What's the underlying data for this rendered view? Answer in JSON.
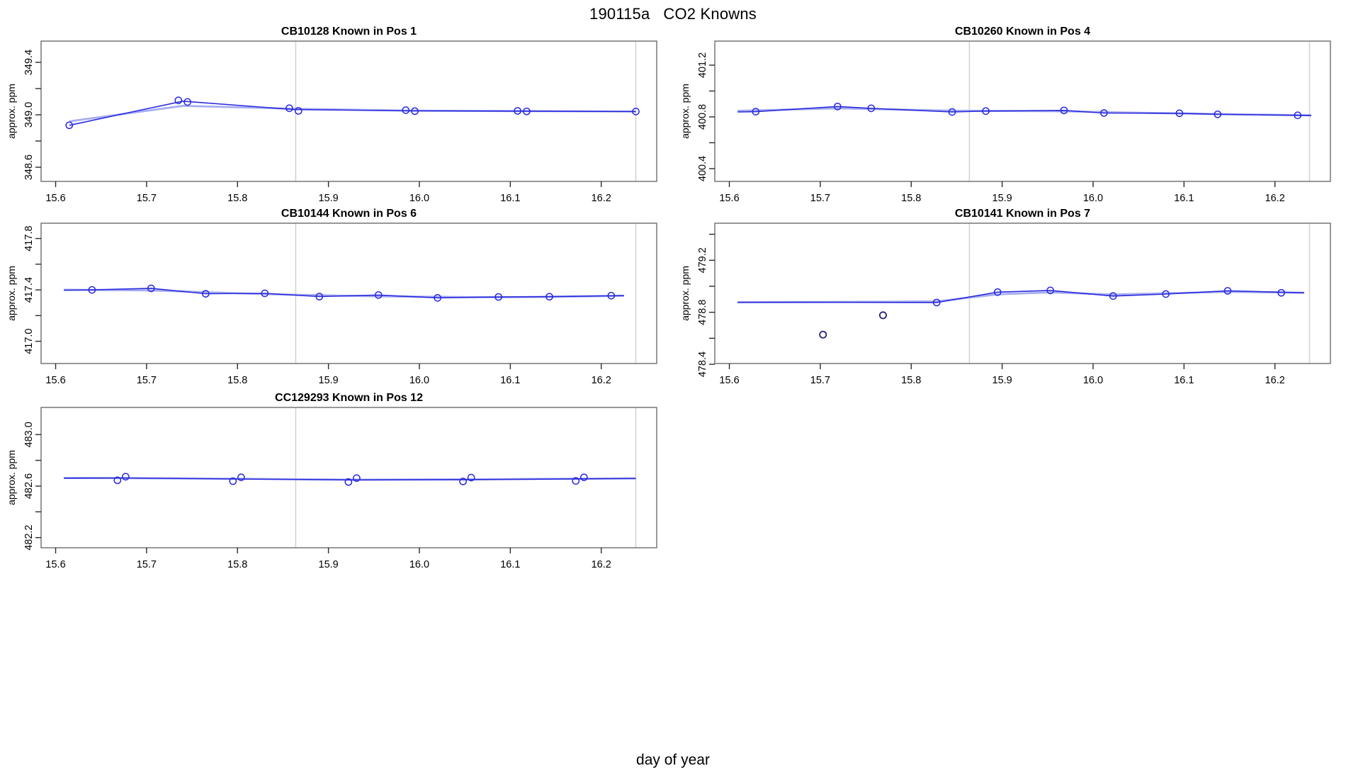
{
  "page": {
    "main_title": "190115a   CO2 Knowns",
    "x_axis_label": "day of year"
  },
  "colors": {
    "line": "#2a2ade",
    "smooth": "#a6adf0",
    "marker": "#2a2ade",
    "outlier": "#23237a",
    "vline": "#d3d3d3",
    "box": "#6b6b6b",
    "tick": "#2a2a2a",
    "text": "#000000"
  },
  "chart_data": {
    "type": "line",
    "title": "190115a   CO2 Knowns",
    "xlabel": "day of year",
    "ylabel": "approx. ppm",
    "xlim": [
      15.584,
      16.261
    ],
    "xticks": [
      {
        "v": 15.6,
        "label": "15.6"
      },
      {
        "v": 15.7,
        "label": "15.7"
      },
      {
        "v": 15.8,
        "label": "15.8"
      },
      {
        "v": 15.9,
        "label": "15.9"
      },
      {
        "v": 16.0,
        "label": "16.0"
      },
      {
        "v": 16.1,
        "label": "16.1"
      },
      {
        "v": 16.2,
        "label": "16.2"
      }
    ],
    "vlines": [
      15.864,
      16.238
    ],
    "legend": "none",
    "grid": "off",
    "panels": [
      {
        "sample": "CB10128",
        "position": "Pos 1",
        "title": "CB10128   Known in Pos 1",
        "grid": [
          0,
          0
        ],
        "ylim": [
          348.492,
          349.562
        ],
        "yticks": [
          {
            "v": 348.6,
            "label": "348.6"
          },
          {
            "v": 348.8,
            "label": ""
          },
          {
            "v": 349.0,
            "label": "349.0"
          },
          {
            "v": 349.2,
            "label": ""
          },
          {
            "v": 349.4,
            "label": "349.4"
          }
        ],
        "points": [
          [
            15.615,
            348.92
          ],
          [
            15.735,
            349.11
          ],
          [
            15.745,
            349.098
          ],
          [
            15.857,
            349.05
          ],
          [
            15.867,
            349.03
          ],
          [
            15.985,
            349.035
          ],
          [
            15.995,
            349.028
          ],
          [
            16.108,
            349.03
          ],
          [
            16.118,
            349.026
          ],
          [
            16.238,
            349.025
          ]
        ],
        "outliers": [],
        "line": [
          [
            15.615,
            348.92
          ],
          [
            15.74,
            349.104
          ],
          [
            15.862,
            349.04
          ],
          [
            15.99,
            349.03
          ],
          [
            16.113,
            349.028
          ],
          [
            16.238,
            349.025
          ]
        ],
        "smooth": [
          [
            15.615,
            348.95
          ],
          [
            15.74,
            349.068
          ],
          [
            15.862,
            349.046
          ],
          [
            15.99,
            349.032
          ],
          [
            16.113,
            349.028
          ],
          [
            16.238,
            349.025
          ]
        ]
      },
      {
        "sample": "CB10260",
        "position": "Pos 4",
        "title": "CB10260   Known in Pos 4",
        "grid": [
          0,
          1
        ],
        "ylim": [
          400.301,
          401.386
        ],
        "yticks": [
          {
            "v": 400.4,
            "label": "400.4"
          },
          {
            "v": 400.6,
            "label": ""
          },
          {
            "v": 400.8,
            "label": "400.8"
          },
          {
            "v": 401.0,
            "label": ""
          },
          {
            "v": 401.2,
            "label": "401.2"
          }
        ],
        "points": [
          [
            15.629,
            400.84
          ],
          [
            15.719,
            400.88
          ],
          [
            15.756,
            400.866
          ],
          [
            15.845,
            400.838
          ],
          [
            15.882,
            400.845
          ],
          [
            15.968,
            400.85
          ],
          [
            16.012,
            400.83
          ],
          [
            16.095,
            400.828
          ],
          [
            16.137,
            400.82
          ],
          [
            16.225,
            400.812
          ]
        ],
        "outliers": [],
        "line": [
          [
            15.609,
            400.838
          ],
          [
            15.629,
            400.84
          ],
          [
            15.719,
            400.88
          ],
          [
            15.756,
            400.866
          ],
          [
            15.845,
            400.838
          ],
          [
            15.882,
            400.845
          ],
          [
            15.968,
            400.85
          ],
          [
            16.012,
            400.83
          ],
          [
            16.095,
            400.828
          ],
          [
            16.137,
            400.82
          ],
          [
            16.24,
            400.81
          ]
        ],
        "smooth": [
          [
            15.609,
            400.847
          ],
          [
            15.719,
            400.866
          ],
          [
            15.845,
            400.848
          ],
          [
            15.968,
            400.843
          ],
          [
            16.095,
            400.826
          ],
          [
            16.24,
            400.812
          ]
        ]
      },
      {
        "sample": "CB10144",
        "position": "Pos 6",
        "title": "CB10144   Known in Pos 6",
        "grid": [
          1,
          0
        ],
        "ylim": [
          416.827,
          417.919
        ],
        "yticks": [
          {
            "v": 417.0,
            "label": "417.0"
          },
          {
            "v": 417.2,
            "label": ""
          },
          {
            "v": 417.4,
            "label": "417.4"
          },
          {
            "v": 417.6,
            "label": ""
          },
          {
            "v": 417.8,
            "label": "417.8"
          }
        ],
        "points": [
          [
            15.64,
            417.4
          ],
          [
            15.705,
            417.412
          ],
          [
            15.765,
            417.37
          ],
          [
            15.83,
            417.373
          ],
          [
            15.89,
            417.348
          ],
          [
            15.955,
            417.36
          ],
          [
            16.02,
            417.338
          ],
          [
            16.087,
            417.345
          ],
          [
            16.143,
            417.347
          ],
          [
            16.211,
            417.355
          ]
        ],
        "outliers": [],
        "line": [
          [
            15.609,
            417.397
          ],
          [
            15.64,
            417.4
          ],
          [
            15.705,
            417.412
          ],
          [
            15.765,
            417.37
          ],
          [
            15.83,
            417.373
          ],
          [
            15.89,
            417.348
          ],
          [
            15.955,
            417.36
          ],
          [
            16.02,
            417.338
          ],
          [
            16.087,
            417.345
          ],
          [
            16.143,
            417.347
          ],
          [
            16.225,
            417.356
          ]
        ],
        "smooth": [
          [
            15.609,
            417.401
          ],
          [
            15.705,
            417.396
          ],
          [
            15.83,
            417.367
          ],
          [
            15.955,
            417.35
          ],
          [
            16.087,
            417.342
          ],
          [
            16.225,
            417.353
          ]
        ]
      },
      {
        "sample": "CB10141",
        "position": "Pos 7",
        "title": "CB10141   Known in Pos 7",
        "grid": [
          1,
          1
        ],
        "ylim": [
          478.406,
          479.485
        ],
        "yticks": [
          {
            "v": 478.4,
            "label": "478.4"
          },
          {
            "v": 478.6,
            "label": ""
          },
          {
            "v": 478.8,
            "label": "478.8"
          },
          {
            "v": 479.0,
            "label": ""
          },
          {
            "v": 479.2,
            "label": "479.2"
          },
          {
            "v": 479.4,
            "label": ""
          }
        ],
        "points": [
          [
            15.828,
            478.875
          ],
          [
            15.895,
            478.955
          ],
          [
            15.953,
            478.968
          ],
          [
            16.022,
            478.925
          ],
          [
            16.08,
            478.94
          ],
          [
            16.148,
            478.965
          ],
          [
            16.207,
            478.95
          ]
        ],
        "outliers": [
          [
            15.703,
            478.628
          ],
          [
            15.769,
            478.777
          ]
        ],
        "line": [
          [
            15.609,
            478.878
          ],
          [
            15.828,
            478.875
          ],
          [
            15.895,
            478.955
          ],
          [
            15.953,
            478.968
          ],
          [
            16.022,
            478.925
          ],
          [
            16.08,
            478.94
          ],
          [
            16.148,
            478.965
          ],
          [
            16.232,
            478.95
          ]
        ],
        "smooth": [
          [
            15.609,
            478.875
          ],
          [
            15.828,
            478.884
          ],
          [
            15.895,
            478.938
          ],
          [
            15.953,
            478.953
          ],
          [
            16.022,
            478.936
          ],
          [
            16.08,
            478.946
          ],
          [
            16.148,
            478.957
          ],
          [
            16.232,
            478.95
          ]
        ]
      },
      {
        "sample": "CC129293",
        "position": "Pos 12",
        "title": "CC129293   Known in Pos 12",
        "grid": [
          2,
          0
        ],
        "ylim": [
          482.121,
          483.211
        ],
        "yticks": [
          {
            "v": 482.2,
            "label": "482.2"
          },
          {
            "v": 482.4,
            "label": ""
          },
          {
            "v": 482.6,
            "label": "482.6"
          },
          {
            "v": 482.8,
            "label": ""
          },
          {
            "v": 483.0,
            "label": "483.0"
          }
        ],
        "points": [
          [
            15.668,
            482.645
          ],
          [
            15.677,
            482.673
          ],
          [
            15.795,
            482.638
          ],
          [
            15.804,
            482.668
          ],
          [
            15.922,
            482.632
          ],
          [
            15.931,
            482.662
          ],
          [
            16.048,
            482.636
          ],
          [
            16.057,
            482.666
          ],
          [
            16.172,
            482.64
          ],
          [
            16.181,
            482.668
          ]
        ],
        "outliers": [],
        "line": [
          [
            15.609,
            482.661
          ],
          [
            15.673,
            482.663
          ],
          [
            15.8,
            482.655
          ],
          [
            15.926,
            482.648
          ],
          [
            16.052,
            482.65
          ],
          [
            16.176,
            482.656
          ],
          [
            16.238,
            482.659
          ]
        ],
        "smooth": [
          [
            15.609,
            482.664
          ],
          [
            15.8,
            482.657
          ],
          [
            15.926,
            482.65
          ],
          [
            16.052,
            482.652
          ],
          [
            16.238,
            482.66
          ]
        ]
      }
    ]
  }
}
